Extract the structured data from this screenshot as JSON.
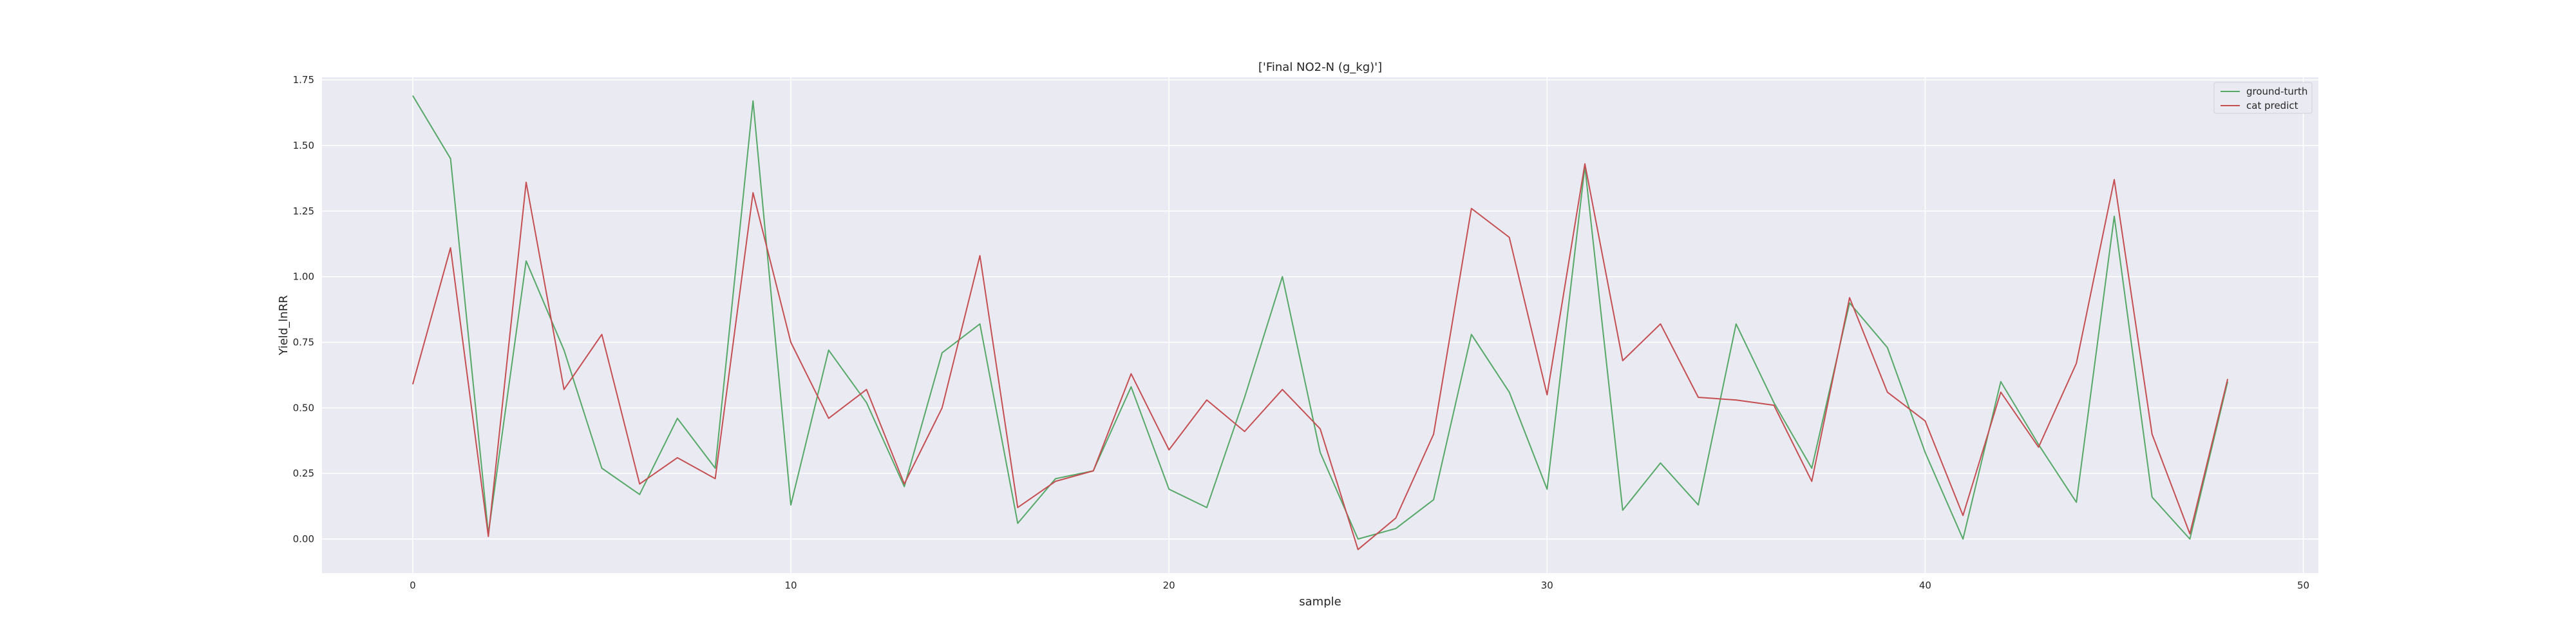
{
  "chart_data": {
    "type": "line",
    "title": "['Final NO2-N (g_kg)']",
    "xlabel": "sample",
    "ylabel": "Yield_lnRR",
    "xlim": [
      -2.4,
      50.4
    ],
    "ylim": [
      -0.13,
      1.76
    ],
    "xticks": [
      0,
      10,
      20,
      30,
      40,
      50
    ],
    "yticks": [
      0.0,
      0.25,
      0.5,
      0.75,
      1.0,
      1.25,
      1.5,
      1.75
    ],
    "xtick_labels": [
      "0",
      "10",
      "20",
      "30",
      "40",
      "50"
    ],
    "ytick_labels": [
      "0.00",
      "0.25",
      "0.50",
      "0.75",
      "1.00",
      "1.25",
      "1.50",
      "1.75"
    ],
    "grid": true,
    "legend_position": "top-right",
    "x": [
      0,
      1,
      2,
      3,
      4,
      5,
      6,
      7,
      8,
      9,
      10,
      11,
      12,
      13,
      14,
      15,
      16,
      17,
      18,
      19,
      20,
      21,
      22,
      23,
      24,
      25,
      26,
      27,
      28,
      29,
      30,
      31,
      32,
      33,
      34,
      35,
      36,
      37,
      38,
      39,
      40,
      41,
      42,
      43,
      44,
      45,
      46,
      47,
      48
    ],
    "series": [
      {
        "name": "ground-turth",
        "color": "#55a868",
        "values": [
          1.69,
          1.45,
          0.02,
          1.06,
          0.72,
          0.27,
          0.17,
          0.46,
          0.27,
          1.67,
          0.13,
          0.72,
          0.52,
          0.2,
          0.71,
          0.82,
          0.06,
          0.23,
          0.26,
          0.58,
          0.19,
          0.12,
          0.54,
          1.0,
          0.33,
          0.0,
          0.04,
          0.15,
          0.78,
          0.56,
          0.19,
          1.42,
          0.11,
          0.29,
          0.13,
          0.82,
          0.52,
          0.27,
          0.9,
          0.73,
          0.33,
          0.0,
          0.6,
          0.36,
          0.14,
          1.23,
          0.16,
          0.0,
          0.6
        ]
      },
      {
        "name": "cat predict",
        "color": "#c44e52",
        "values": [
          0.59,
          1.11,
          0.01,
          1.36,
          0.57,
          0.78,
          0.21,
          0.31,
          0.23,
          1.32,
          0.75,
          0.46,
          0.57,
          0.21,
          0.5,
          1.08,
          0.12,
          0.22,
          0.26,
          0.63,
          0.34,
          0.53,
          0.41,
          0.57,
          0.42,
          -0.04,
          0.08,
          0.4,
          1.26,
          1.15,
          0.55,
          1.43,
          0.68,
          0.82,
          0.54,
          0.53,
          0.51,
          0.22,
          0.92,
          0.56,
          0.45,
          0.09,
          0.56,
          0.35,
          0.67,
          1.37,
          0.4,
          0.02,
          0.61
        ]
      }
    ]
  }
}
